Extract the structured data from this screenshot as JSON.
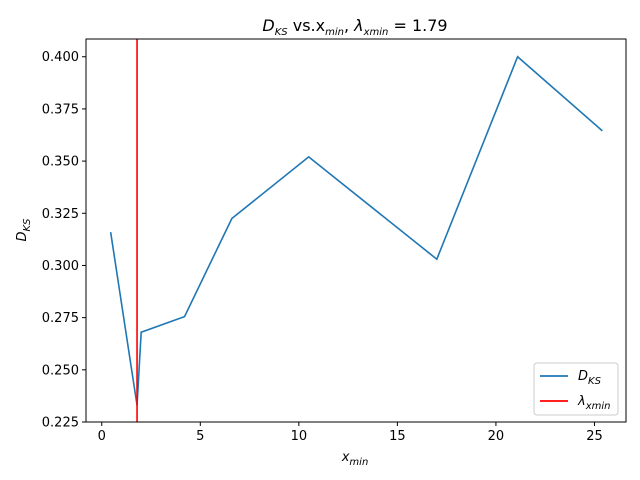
{
  "chart_data": {
    "type": "line",
    "title": {
      "main": "D",
      "main_sub": "KS",
      "mid": " vs.x",
      "mid_sub": "min",
      "tail_pre": ", ",
      "lambda": "λ",
      "lambda_sub": "xmin",
      "tail": " = 1.79"
    },
    "xlabel": {
      "main": "x",
      "sub": "min"
    },
    "ylabel": {
      "main": "D",
      "sub": "KS"
    },
    "xlim": [
      -0.8,
      26.6
    ],
    "ylim": [
      0.225,
      0.4085
    ],
    "xticks": [
      0,
      5,
      10,
      15,
      20,
      25
    ],
    "yticks": [
      0.225,
      0.25,
      0.275,
      0.3,
      0.325,
      0.35,
      0.375,
      0.4
    ],
    "ytick_labels": [
      "0.225",
      "0.250",
      "0.275",
      "0.300",
      "0.325",
      "0.350",
      "0.375",
      "0.400"
    ],
    "series": [
      {
        "name": "D_KS",
        "color": "#1f77b4",
        "x": [
          0.45,
          1.79,
          2.0,
          4.2,
          6.6,
          10.5,
          17.0,
          21.1,
          25.4
        ],
        "y": [
          0.316,
          0.233,
          0.268,
          0.2755,
          0.3225,
          0.352,
          0.303,
          0.4,
          0.3645
        ]
      }
    ],
    "vline": {
      "name": "λ_xmin",
      "x": 1.79,
      "color": "#ff0000"
    },
    "legend": {
      "placement": "lower-right",
      "entries": [
        {
          "main": "D",
          "sub": "KS",
          "color": "#1f77b4"
        },
        {
          "main": "λ",
          "sub": "xmin",
          "color": "#ff0000"
        }
      ]
    },
    "grid": false
  }
}
